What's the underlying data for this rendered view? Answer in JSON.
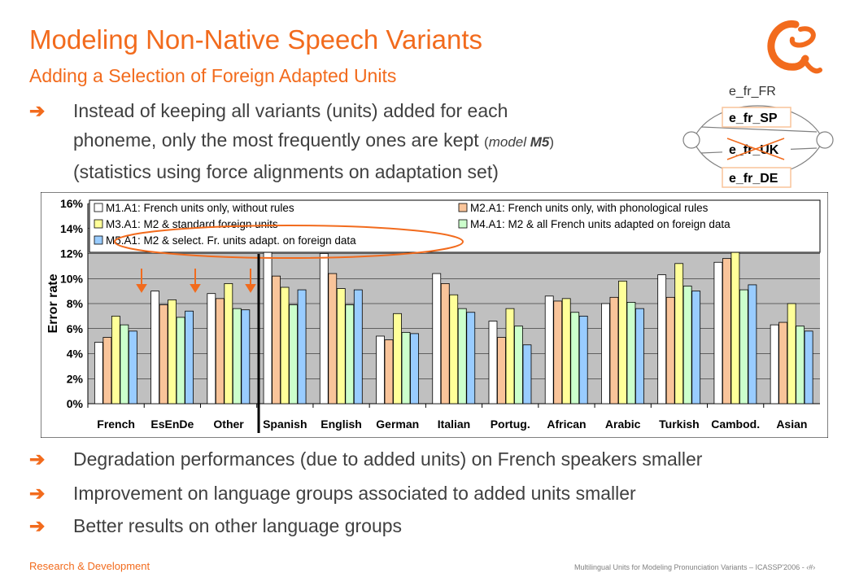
{
  "slide": {
    "title": "Modeling Non-Native Speech Variants",
    "subtitle": "Adding a Selection of Foreign Adapted Units"
  },
  "bullets_top": {
    "line1": "Instead of keeping all variants (units) added for each",
    "line2a": "phoneme, only the most frequently ones are kept ",
    "line2b_open": "(",
    "line2b_model": "model ",
    "line2b_m5": "M5",
    "line2b_close": ")",
    "line3": "(statistics using force alignments on adaptation set)"
  },
  "diagram": {
    "labels": [
      "e_fr_FR",
      "e_fr_SP",
      "e_fr_UK",
      "e_fr_DE"
    ]
  },
  "bullets_bottom": [
    "Degradation performances (due to added units) on French speakers smaller",
    "Improvement on language groups associated to added units smaller",
    "Better results on other language groups"
  ],
  "footer": {
    "left": "Research & Development",
    "right": "Multilingual Units for Modeling Pronunciation Variants – ICASSP'2006 - ‹#›"
  },
  "colors": {
    "accent": "#F26B1D",
    "plot_bg": "#C0C0C0",
    "series": [
      "#FFFFFF",
      "#F9C49A",
      "#FFFF99",
      "#CCFFCC",
      "#99CCFF"
    ]
  },
  "chart_data": {
    "type": "bar",
    "ylabel": "Error rate",
    "ylim": [
      0,
      16
    ],
    "yticks": [
      "0%",
      "2%",
      "4%",
      "6%",
      "8%",
      "10%",
      "12%",
      "14%",
      "16%"
    ],
    "grid": true,
    "categories": [
      "French",
      "EsEnDe",
      "Other",
      "Spanish",
      "English",
      "German",
      "Italian",
      "Portug.",
      "African",
      "Arabic",
      "Turkish",
      "Cambod.",
      "Asian"
    ],
    "series": [
      {
        "name": "M1.A1: French units only, without rules",
        "values": [
          4.9,
          9.0,
          8.8,
          12.6,
          12.0,
          5.4,
          10.4,
          6.6,
          8.6,
          8.0,
          10.3,
          11.3,
          6.3
        ]
      },
      {
        "name": "M2.A1: French units only, with phonological rules",
        "values": [
          5.3,
          7.9,
          8.4,
          10.2,
          10.4,
          5.1,
          9.6,
          5.3,
          8.2,
          8.5,
          8.5,
          11.6,
          6.5
        ]
      },
      {
        "name": "M3.A1: M2 & standard foreign units",
        "values": [
          7.0,
          8.3,
          9.6,
          9.3,
          9.2,
          7.2,
          8.7,
          7.6,
          8.4,
          9.8,
          11.2,
          12.5,
          8.0
        ]
      },
      {
        "name": "M4.A1: M2 & all French units adapted on foreign data",
        "values": [
          6.3,
          6.9,
          7.6,
          7.9,
          7.9,
          5.7,
          7.6,
          6.2,
          7.3,
          8.1,
          9.4,
          9.1,
          6.2
        ]
      },
      {
        "name": "M5.A1: M2 & select. Fr. units adapt. on foreign data",
        "values": [
          5.8,
          7.4,
          7.5,
          9.1,
          9.1,
          5.6,
          7.3,
          4.7,
          7.0,
          7.6,
          9.0,
          9.5,
          5.8
        ]
      }
    ],
    "annotations": "orange arrows pointing down at French, EsEnDe, Other; orange ellipse around M5.A1 legend entry; vertical black divider between Other and Spanish"
  }
}
